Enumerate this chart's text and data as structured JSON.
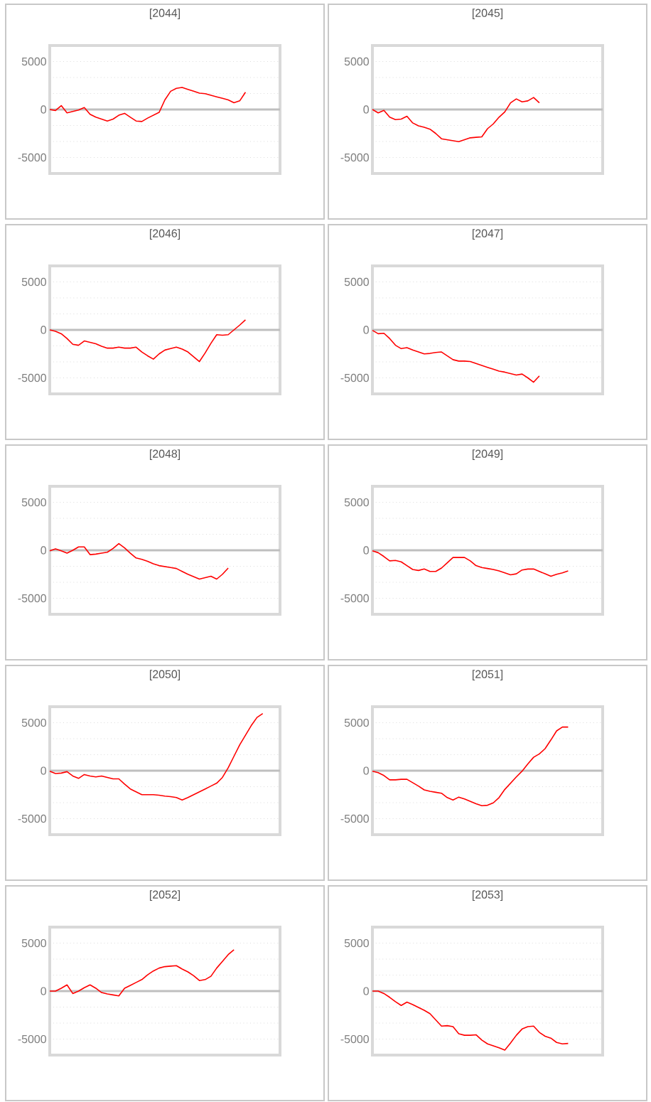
{
  "chart_data": [
    {
      "type": "line",
      "title": "[2044]",
      "categories": [
        null,
        null,
        null,
        null,
        null,
        null,
        null,
        null,
        null,
        null,
        null,
        null,
        null,
        null,
        null,
        null,
        null,
        null,
        null,
        null,
        null,
        null,
        null,
        null,
        null,
        null,
        null,
        null,
        null,
        null,
        null,
        null,
        null,
        null,
        null,
        null,
        null,
        null,
        null,
        null,
        null
      ],
      "values": [
        0,
        -100,
        400,
        -350,
        -200,
        -50,
        200,
        -500,
        -800,
        -1000,
        -1200,
        -1000,
        -600,
        -400,
        -800,
        -1200,
        -1250,
        -900,
        -600,
        -300,
        1000,
        1900,
        2200,
        2300,
        2100,
        1900,
        1700,
        1650,
        1480,
        1320,
        1170,
        1000,
        700,
        900,
        1800,
        null,
        null,
        null,
        null,
        null,
        null
      ],
      "color": "#ff0000",
      "ylim": [
        -6667,
        6667
      ],
      "yticks": [
        {
          "value": 6667,
          "label": null
        },
        5000,
        {
          "value": 3333,
          "label": null
        },
        {
          "value": 1667,
          "label": null
        },
        0,
        {
          "value": -1667,
          "label": null
        },
        {
          "value": -3333,
          "label": null
        },
        -5000,
        {
          "value": -6667,
          "label": null
        }
      ],
      "grid": "y",
      "ref_lines": [
        {
          "axis": "y",
          "value": 0,
          "color": "#bfbfbf"
        }
      ]
    },
    {
      "type": "line",
      "title": "[2045]",
      "categories": [
        null,
        null,
        null,
        null,
        null,
        null,
        null,
        null,
        null,
        null,
        null,
        null,
        null,
        null,
        null,
        null,
        null,
        null,
        null,
        null,
        null,
        null,
        null,
        null,
        null,
        null,
        null,
        null,
        null,
        null,
        null,
        null,
        null,
        null,
        null,
        null,
        null,
        null,
        null,
        null,
        null
      ],
      "values": [
        0,
        -350,
        -100,
        -800,
        -1050,
        -1000,
        -700,
        -1400,
        -1700,
        -1850,
        -2050,
        -2500,
        -3050,
        -3150,
        -3250,
        -3350,
        -3150,
        -2950,
        -2900,
        -2850,
        -2000,
        -1500,
        -800,
        -250,
        700,
        1100,
        800,
        900,
        1250,
        700,
        null,
        null,
        null,
        null,
        null,
        null,
        null,
        null,
        null,
        null,
        null
      ],
      "color": "#ff0000",
      "ylim": [
        -6667,
        6667
      ],
      "yticks": [
        {
          "value": 6667,
          "label": null
        },
        5000,
        {
          "value": 3333,
          "label": null
        },
        {
          "value": 1667,
          "label": null
        },
        0,
        {
          "value": -1667,
          "label": null
        },
        {
          "value": -3333,
          "label": null
        },
        -5000,
        {
          "value": -6667,
          "label": null
        }
      ],
      "grid": "y",
      "ref_lines": [
        {
          "axis": "y",
          "value": 0,
          "color": "#bfbfbf"
        }
      ]
    },
    {
      "type": "line",
      "title": "[2046]",
      "categories": [
        null,
        null,
        null,
        null,
        null,
        null,
        null,
        null,
        null,
        null,
        null,
        null,
        null,
        null,
        null,
        null,
        null,
        null,
        null,
        null,
        null,
        null,
        null,
        null,
        null,
        null,
        null,
        null,
        null,
        null,
        null,
        null,
        null,
        null,
        null,
        null,
        null,
        null,
        null,
        null,
        null
      ],
      "values": [
        0,
        -150,
        -400,
        -900,
        -1500,
        -1600,
        -1150,
        -1300,
        -1450,
        -1700,
        -1900,
        -1900,
        -1800,
        -1900,
        -1900,
        -1800,
        -2300,
        -2700,
        -3050,
        -2500,
        -2100,
        -1950,
        -1800,
        -2000,
        -2300,
        -2800,
        -3300,
        -2400,
        -1400,
        -500,
        -550,
        -500,
        0,
        500,
        1050,
        null,
        null,
        null,
        null,
        null,
        null
      ],
      "color": "#ff0000",
      "ylim": [
        -6667,
        6667
      ],
      "yticks": [
        {
          "value": 6667,
          "label": null
        },
        5000,
        {
          "value": 3333,
          "label": null
        },
        {
          "value": 1667,
          "label": null
        },
        0,
        {
          "value": -1667,
          "label": null
        },
        {
          "value": -3333,
          "label": null
        },
        -5000,
        {
          "value": -6667,
          "label": null
        }
      ],
      "grid": "y",
      "ref_lines": [
        {
          "axis": "y",
          "value": 0,
          "color": "#bfbfbf"
        }
      ]
    },
    {
      "type": "line",
      "title": "[2047]",
      "categories": [
        null,
        null,
        null,
        null,
        null,
        null,
        null,
        null,
        null,
        null,
        null,
        null,
        null,
        null,
        null,
        null,
        null,
        null,
        null,
        null,
        null,
        null,
        null,
        null,
        null,
        null,
        null,
        null,
        null,
        null,
        null,
        null,
        null,
        null,
        null,
        null,
        null,
        null,
        null,
        null,
        null
      ],
      "values": [
        -50,
        -400,
        -350,
        -900,
        -1600,
        -1950,
        -1850,
        -2100,
        -2300,
        -2500,
        -2450,
        -2350,
        -2300,
        -2700,
        -3100,
        -3250,
        -3250,
        -3300,
        -3500,
        -3700,
        -3900,
        -4100,
        -4300,
        -4400,
        -4550,
        -4700,
        -4600,
        -5000,
        -5450,
        -4800,
        null,
        null,
        null,
        null,
        null,
        null,
        null,
        null,
        null,
        null,
        null
      ],
      "color": "#ff0000",
      "ylim": [
        -6667,
        6667
      ],
      "yticks": [
        {
          "value": 6667,
          "label": null
        },
        5000,
        {
          "value": 3333,
          "label": null
        },
        {
          "value": 1667,
          "label": null
        },
        0,
        {
          "value": -1667,
          "label": null
        },
        {
          "value": -3333,
          "label": null
        },
        -5000,
        {
          "value": -6667,
          "label": null
        }
      ],
      "grid": "y",
      "ref_lines": [
        {
          "axis": "y",
          "value": 0,
          "color": "#bfbfbf"
        }
      ]
    },
    {
      "type": "line",
      "title": "[2048]",
      "categories": [
        null,
        null,
        null,
        null,
        null,
        null,
        null,
        null,
        null,
        null,
        null,
        null,
        null,
        null,
        null,
        null,
        null,
        null,
        null,
        null,
        null,
        null,
        null,
        null,
        null,
        null,
        null,
        null,
        null,
        null,
        null,
        null,
        null,
        null,
        null,
        null,
        null,
        null,
        null,
        null,
        null
      ],
      "values": [
        -50,
        150,
        -50,
        -300,
        0,
        350,
        350,
        -450,
        -400,
        -300,
        -200,
        200,
        700,
        250,
        -300,
        -800,
        -950,
        -1150,
        -1400,
        -1600,
        -1700,
        -1800,
        -1900,
        -2200,
        -2500,
        -2750,
        -3000,
        -2850,
        -2700,
        -3000,
        -2500,
        -1850,
        null,
        null,
        null,
        null,
        null,
        null,
        null,
        null,
        null
      ],
      "color": "#ff0000",
      "ylim": [
        -6667,
        6667
      ],
      "yticks": [
        {
          "value": 6667,
          "label": null
        },
        5000,
        {
          "value": 3333,
          "label": null
        },
        {
          "value": 1667,
          "label": null
        },
        0,
        {
          "value": -1667,
          "label": null
        },
        {
          "value": -3333,
          "label": null
        },
        -5000,
        {
          "value": -6667,
          "label": null
        }
      ],
      "grid": "y",
      "ref_lines": [
        {
          "axis": "y",
          "value": 0,
          "color": "#bfbfbf"
        }
      ]
    },
    {
      "type": "line",
      "title": "[2049]",
      "categories": [
        null,
        null,
        null,
        null,
        null,
        null,
        null,
        null,
        null,
        null,
        null,
        null,
        null,
        null,
        null,
        null,
        null,
        null,
        null,
        null,
        null,
        null,
        null,
        null,
        null,
        null,
        null,
        null,
        null,
        null,
        null,
        null,
        null,
        null,
        null,
        null,
        null,
        null,
        null,
        null,
        null
      ],
      "values": [
        -50,
        -250,
        -650,
        -1100,
        -1050,
        -1200,
        -1600,
        -2000,
        -2100,
        -1950,
        -2200,
        -2200,
        -1850,
        -1300,
        -750,
        -750,
        -750,
        -1100,
        -1600,
        -1800,
        -1900,
        -2000,
        -2150,
        -2350,
        -2550,
        -2450,
        -2050,
        -1950,
        -1950,
        -2200,
        -2450,
        -2700,
        -2500,
        -2350,
        -2150,
        null,
        null,
        null,
        null,
        null,
        null
      ],
      "color": "#ff0000",
      "ylim": [
        -6667,
        6667
      ],
      "yticks": [
        {
          "value": 6667,
          "label": null
        },
        5000,
        {
          "value": 3333,
          "label": null
        },
        {
          "value": 1667,
          "label": null
        },
        0,
        {
          "value": -1667,
          "label": null
        },
        {
          "value": -3333,
          "label": null
        },
        -5000,
        {
          "value": -6667,
          "label": null
        }
      ],
      "grid": "y",
      "ref_lines": [
        {
          "axis": "y",
          "value": 0,
          "color": "#bfbfbf"
        }
      ]
    },
    {
      "type": "line",
      "title": "[2050]",
      "categories": [
        null,
        null,
        null,
        null,
        null,
        null,
        null,
        null,
        null,
        null,
        null,
        null,
        null,
        null,
        null,
        null,
        null,
        null,
        null,
        null,
        null,
        null,
        null,
        null,
        null,
        null,
        null,
        null,
        null,
        null,
        null,
        null,
        null,
        null,
        null,
        null,
        null,
        null,
        null,
        null,
        null
      ],
      "values": [
        -50,
        -300,
        -250,
        -100,
        -550,
        -800,
        -400,
        -550,
        -650,
        -550,
        -700,
        -850,
        -850,
        -1400,
        -1900,
        -2200,
        -2500,
        -2500,
        -2500,
        -2550,
        -2650,
        -2700,
        -2800,
        -3050,
        -2800,
        -2500,
        -2200,
        -1900,
        -1600,
        -1300,
        -700,
        300,
        1500,
        2700,
        3700,
        4700,
        5550,
        5950,
        null,
        null,
        null
      ],
      "color": "#ff0000",
      "ylim": [
        -6667,
        6667
      ],
      "yticks": [
        {
          "value": 6667,
          "label": null
        },
        5000,
        {
          "value": 3333,
          "label": null
        },
        {
          "value": 1667,
          "label": null
        },
        0,
        {
          "value": -1667,
          "label": null
        },
        {
          "value": -3333,
          "label": null
        },
        -5000,
        {
          "value": -6667,
          "label": null
        }
      ],
      "grid": "y",
      "ref_lines": [
        {
          "axis": "y",
          "value": 0,
          "color": "#bfbfbf"
        }
      ]
    },
    {
      "type": "line",
      "title": "[2051]",
      "categories": [
        null,
        null,
        null,
        null,
        null,
        null,
        null,
        null,
        null,
        null,
        null,
        null,
        null,
        null,
        null,
        null,
        null,
        null,
        null,
        null,
        null,
        null,
        null,
        null,
        null,
        null,
        null,
        null,
        null,
        null,
        null,
        null,
        null,
        null,
        null,
        null,
        null,
        null,
        null,
        null,
        null
      ],
      "values": [
        -50,
        -200,
        -500,
        -950,
        -950,
        -900,
        -900,
        -1250,
        -1600,
        -2000,
        -2150,
        -2250,
        -2350,
        -2800,
        -3050,
        -2750,
        -2950,
        -3200,
        -3450,
        -3650,
        -3600,
        -3350,
        -2800,
        -1950,
        -1300,
        -650,
        -50,
        700,
        1400,
        1750,
        2300,
        3200,
        4150,
        4550,
        4550,
        null,
        null,
        null,
        null,
        null,
        null
      ],
      "color": "#ff0000",
      "ylim": [
        -6667,
        6667
      ],
      "yticks": [
        {
          "value": 6667,
          "label": null
        },
        5000,
        {
          "value": 3333,
          "label": null
        },
        {
          "value": 1667,
          "label": null
        },
        0,
        {
          "value": -1667,
          "label": null
        },
        {
          "value": -3333,
          "label": null
        },
        -5000,
        {
          "value": -6667,
          "label": null
        }
      ],
      "grid": "y",
      "ref_lines": [
        {
          "axis": "y",
          "value": 0,
          "color": "#bfbfbf"
        }
      ]
    },
    {
      "type": "line",
      "title": "[2052]",
      "categories": [
        null,
        null,
        null,
        null,
        null,
        null,
        null,
        null,
        null,
        null,
        null,
        null,
        null,
        null,
        null,
        null,
        null,
        null,
        null,
        null,
        null,
        null,
        null,
        null,
        null,
        null,
        null,
        null,
        null,
        null,
        null,
        null,
        null,
        null,
        null,
        null,
        null,
        null,
        null,
        null,
        null
      ],
      "values": [
        0,
        0,
        300,
        650,
        -250,
        0,
        350,
        650,
        300,
        -150,
        -300,
        -400,
        -500,
        300,
        600,
        900,
        1200,
        1700,
        2100,
        2400,
        2550,
        2600,
        2650,
        2300,
        2000,
        1600,
        1100,
        1200,
        1550,
        2400,
        3100,
        3800,
        4300,
        null,
        null,
        null,
        null,
        null,
        null,
        null,
        null
      ],
      "color": "#ff0000",
      "ylim": [
        -6667,
        6667
      ],
      "yticks": [
        {
          "value": 6667,
          "label": null
        },
        5000,
        {
          "value": 3333,
          "label": null
        },
        {
          "value": 1667,
          "label": null
        },
        0,
        {
          "value": -1667,
          "label": null
        },
        {
          "value": -3333,
          "label": null
        },
        -5000,
        {
          "value": -6667,
          "label": null
        }
      ],
      "grid": "y",
      "ref_lines": [
        {
          "axis": "y",
          "value": 0,
          "color": "#bfbfbf"
        }
      ]
    },
    {
      "type": "line",
      "title": "[2053]",
      "categories": [
        null,
        null,
        null,
        null,
        null,
        null,
        null,
        null,
        null,
        null,
        null,
        null,
        null,
        null,
        null,
        null,
        null,
        null,
        null,
        null,
        null,
        null,
        null,
        null,
        null,
        null,
        null,
        null,
        null,
        null,
        null,
        null,
        null,
        null,
        null,
        null,
        null,
        null,
        null,
        null,
        null
      ],
      "values": [
        0,
        0,
        -250,
        -650,
        -1100,
        -1500,
        -1150,
        -1400,
        -1700,
        -2000,
        -2350,
        -3000,
        -3650,
        -3600,
        -3700,
        -4450,
        -4600,
        -4600,
        -4550,
        -5100,
        -5500,
        -5700,
        -5900,
        -6150,
        -5400,
        -4600,
        -3950,
        -3700,
        -3650,
        -4300,
        -4700,
        -4900,
        -5350,
        -5500,
        -5450,
        null,
        null,
        null,
        null,
        null,
        null
      ],
      "color": "#ff0000",
      "ylim": [
        -6667,
        6667
      ],
      "yticks": [
        {
          "value": 6667,
          "label": null
        },
        5000,
        {
          "value": 3333,
          "label": null
        },
        {
          "value": 1667,
          "label": null
        },
        0,
        {
          "value": -1667,
          "label": null
        },
        {
          "value": -3333,
          "label": null
        },
        -5000,
        {
          "value": -6667,
          "label": null
        }
      ],
      "grid": "y",
      "ref_lines": [
        {
          "axis": "y",
          "value": 0,
          "color": "#bfbfbf"
        }
      ]
    }
  ]
}
